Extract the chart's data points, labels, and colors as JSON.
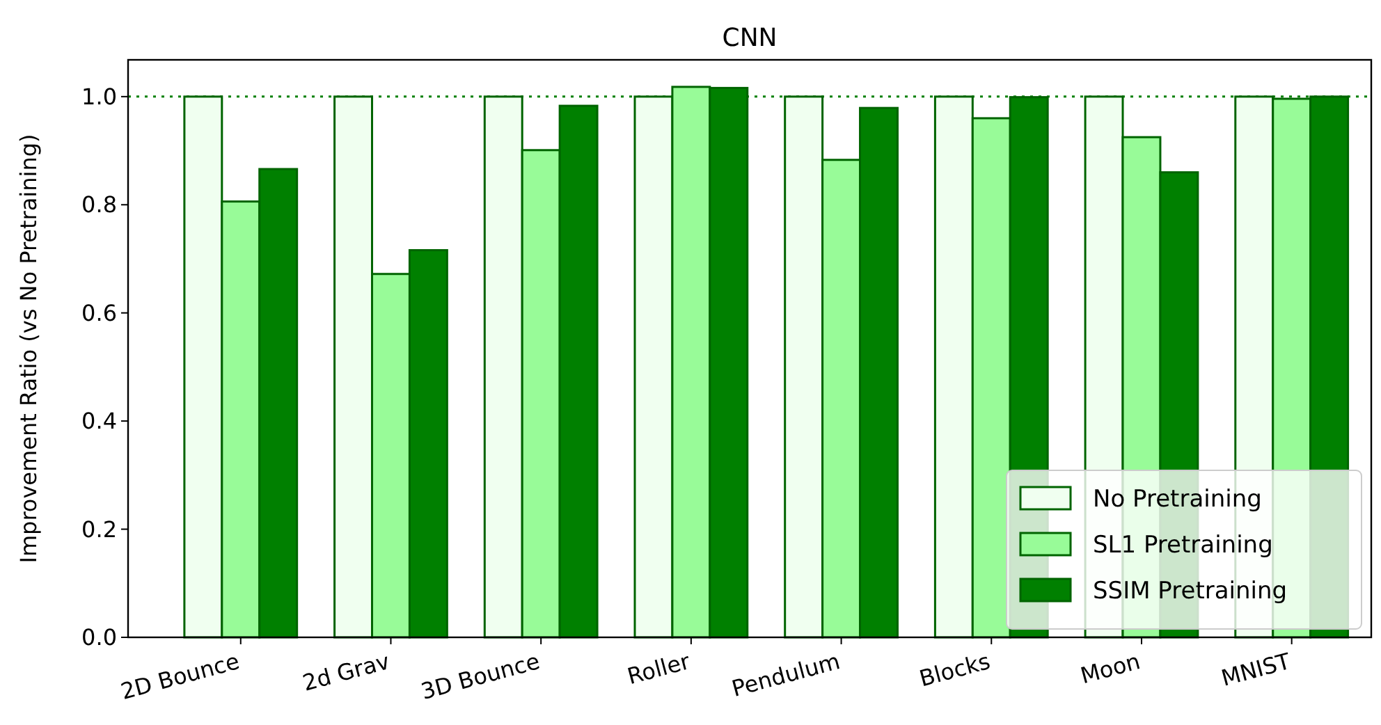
{
  "chart_data": {
    "type": "bar",
    "title": "CNN",
    "ylabel": "Improvement Ratio (vs No Pretraining)",
    "categories": [
      "2D Bounce",
      "2d Grav",
      "3D Bounce",
      "Roller",
      "Pendulum",
      "Blocks",
      "Moon",
      "MNIST"
    ],
    "series": [
      {
        "name": "No Pretraining",
        "color": "#f0fff0",
        "values": [
          1.0,
          1.0,
          1.0,
          1.0,
          1.0,
          1.0,
          1.0,
          1.0
        ]
      },
      {
        "name": "SL1 Pretraining",
        "color": "#98fb98",
        "values": [
          0.806,
          0.672,
          0.901,
          1.018,
          0.883,
          0.96,
          0.925,
          0.996
        ]
      },
      {
        "name": "SSIM Pretraining",
        "color": "#008000",
        "values": [
          0.866,
          0.716,
          0.983,
          1.016,
          0.979,
          0.999,
          0.86,
          1.0
        ]
      }
    ],
    "ylim": [
      0,
      1.068
    ],
    "yticks": [
      {
        "value": 0,
        "label": "0.0"
      },
      0.2,
      0.4,
      0.6,
      0.8,
      {
        "value": 1,
        "label": "1.0"
      }
    ],
    "ref_lines": [
      {
        "axis": "y",
        "value": 1,
        "color": "#008000",
        "line_style": "dotted"
      }
    ],
    "legend": "bottom right",
    "grid": false
  }
}
